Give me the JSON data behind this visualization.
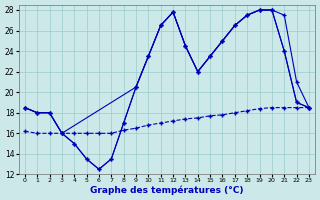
{
  "xlabel": "Graphe des températures (°C)",
  "bg_color": "#cce8e8",
  "grid_color": "#99cccc",
  "line_color": "#0000bb",
  "xlim_min": -0.5,
  "xlim_max": 23.5,
  "ylim_min": 12,
  "ylim_max": 28.5,
  "yticks": [
    12,
    14,
    16,
    18,
    20,
    22,
    24,
    26,
    28
  ],
  "xticks": [
    0,
    1,
    2,
    3,
    4,
    5,
    6,
    7,
    8,
    9,
    10,
    11,
    12,
    13,
    14,
    15,
    16,
    17,
    18,
    19,
    20,
    21,
    22,
    23
  ],
  "line1_x": [
    0,
    1,
    2,
    3,
    4,
    5,
    6,
    7,
    8,
    9,
    10,
    11,
    12,
    13,
    14,
    15,
    16,
    17,
    18,
    19,
    20,
    21,
    22,
    23
  ],
  "line1_y": [
    18.5,
    18.0,
    18.0,
    16.0,
    15.0,
    13.5,
    12.5,
    13.5,
    17.0,
    20.5,
    23.5,
    26.5,
    27.8,
    24.5,
    22.0,
    23.5,
    25.0,
    26.5,
    27.5,
    28.0,
    28.0,
    27.5,
    21.0,
    18.5
  ],
  "line2_x": [
    0,
    1,
    2,
    3,
    4,
    5,
    6,
    7,
    8,
    9,
    10,
    11,
    12,
    13,
    14,
    15,
    16,
    17,
    18,
    19,
    20,
    21,
    22,
    23
  ],
  "line2_y": [
    18.5,
    18.0,
    18.0,
    16.0,
    15.0,
    13.5,
    12.5,
    13.5,
    17.0,
    20.5,
    23.5,
    26.5,
    27.8,
    24.5,
    22.0,
    23.5,
    25.0,
    26.5,
    27.5,
    28.0,
    28.0,
    24.0,
    19.0,
    18.5
  ],
  "line3_x": [
    0,
    1,
    2,
    3,
    9,
    10,
    11,
    12,
    13,
    14,
    15,
    16,
    17,
    18,
    19,
    20,
    21,
    22,
    23
  ],
  "line3_y": [
    18.5,
    18.0,
    18.0,
    16.0,
    20.5,
    23.5,
    26.5,
    27.8,
    24.5,
    22.0,
    23.5,
    25.0,
    26.5,
    27.5,
    28.0,
    28.0,
    24.0,
    19.0,
    18.5
  ],
  "line4_x": [
    0,
    1,
    2,
    3,
    4,
    5,
    6,
    7,
    8,
    9,
    10,
    11,
    12,
    13,
    14,
    15,
    16,
    17,
    18,
    19,
    20,
    21,
    22,
    23
  ],
  "line4_y": [
    16.2,
    16.0,
    16.0,
    16.0,
    16.0,
    16.0,
    16.0,
    16.0,
    16.3,
    16.5,
    16.8,
    17.0,
    17.2,
    17.4,
    17.5,
    17.7,
    17.8,
    18.0,
    18.2,
    18.4,
    18.5,
    18.5,
    18.5,
    18.5
  ]
}
